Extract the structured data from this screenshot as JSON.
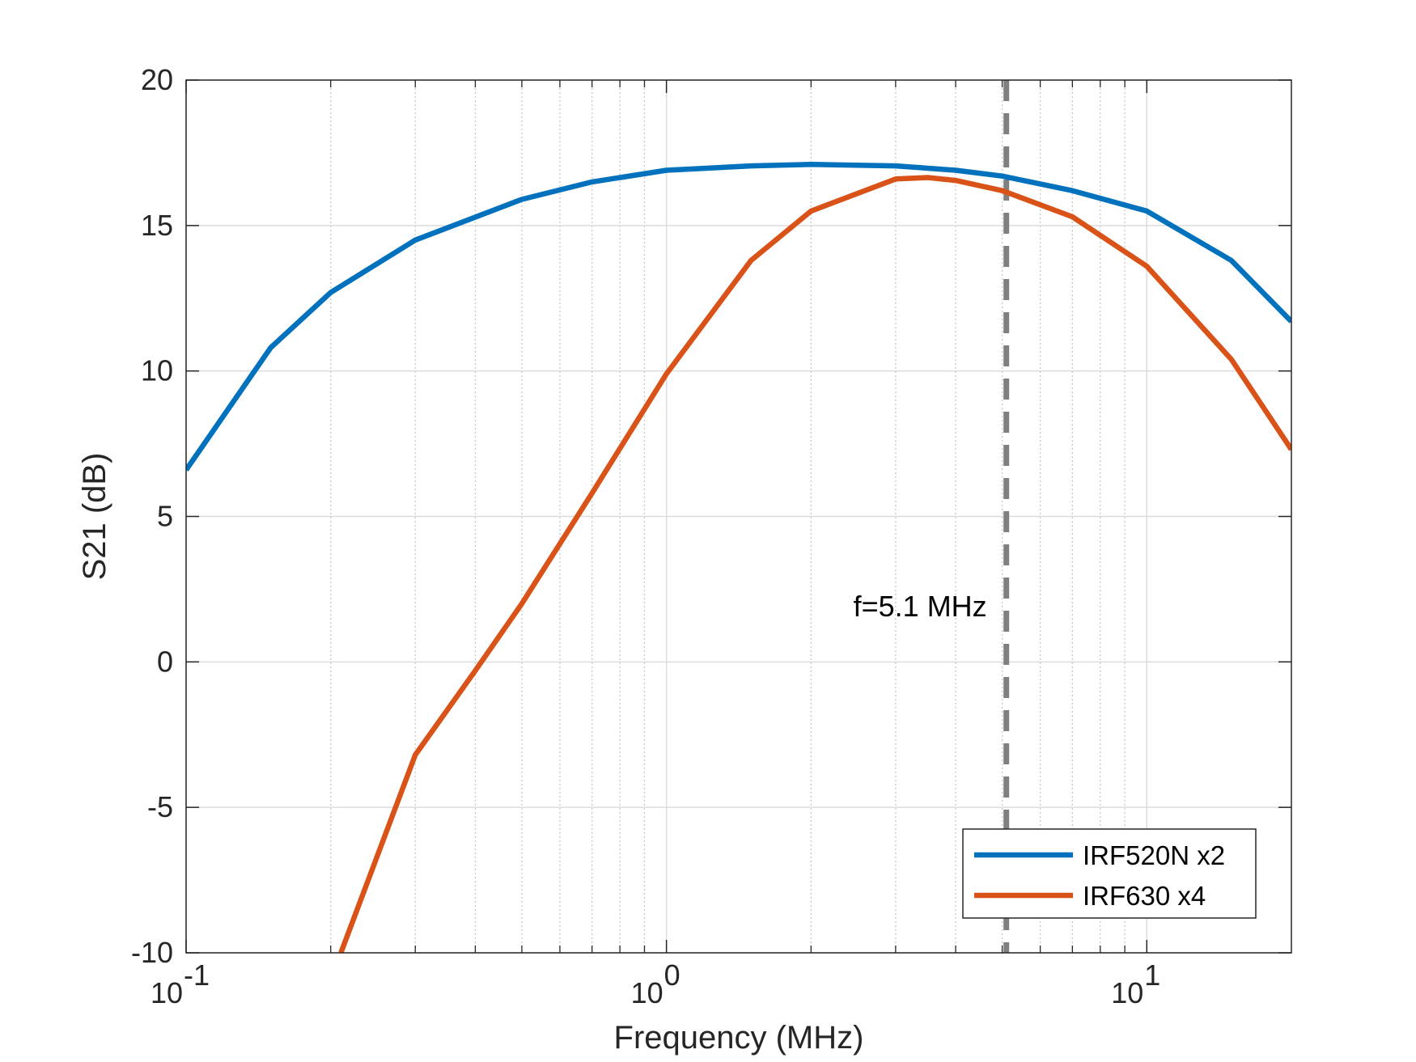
{
  "chart_data": {
    "type": "line",
    "xlabel": "Frequency (MHz)",
    "ylabel": "S21 (dB)",
    "x_scale": "log",
    "xlim": [
      0.1,
      20
    ],
    "ylim": [
      -10,
      20
    ],
    "x_ticks": [
      {
        "value": 0.1,
        "base": "10",
        "exp": "-1"
      },
      {
        "value": 1,
        "base": "10",
        "exp": "0"
      },
      {
        "value": 10,
        "base": "10",
        "exp": "1"
      }
    ],
    "y_ticks": [
      {
        "value": -10,
        "label": "-10"
      },
      {
        "value": -5,
        "label": "-5"
      },
      {
        "value": 0,
        "label": "0"
      },
      {
        "value": 5,
        "label": "5"
      },
      {
        "value": 10,
        "label": "10"
      },
      {
        "value": 15,
        "label": "15"
      },
      {
        "value": 20,
        "label": "20"
      }
    ],
    "grid": true,
    "minor_grid": true,
    "legend_position": "bottom-right",
    "series": [
      {
        "name": "IRF520N x2",
        "color": "#0072BD",
        "x": [
          0.1,
          0.15,
          0.2,
          0.3,
          0.5,
          0.7,
          1,
          1.5,
          2,
          3,
          4,
          5,
          7,
          10,
          15,
          20
        ],
        "y": [
          6.6,
          10.8,
          12.7,
          14.5,
          15.9,
          16.5,
          16.9,
          17.05,
          17.1,
          17.05,
          16.9,
          16.7,
          16.2,
          15.5,
          13.8,
          11.7
        ]
      },
      {
        "name": "IRF630 x4",
        "color": "#D95319",
        "x": [
          0.21,
          0.3,
          0.4,
          0.5,
          0.7,
          1,
          1.5,
          2,
          3,
          3.5,
          4,
          5,
          7,
          10,
          15,
          20
        ],
        "y": [
          -10,
          -3.2,
          -0.3,
          2,
          5.8,
          9.9,
          13.8,
          15.5,
          16.6,
          16.65,
          16.55,
          16.2,
          15.3,
          13.6,
          10.4,
          7.3
        ]
      }
    ],
    "reference_line": {
      "x": 5.1,
      "color": "#808080",
      "style": "dashed",
      "label": "f=5.1 MHz"
    }
  }
}
